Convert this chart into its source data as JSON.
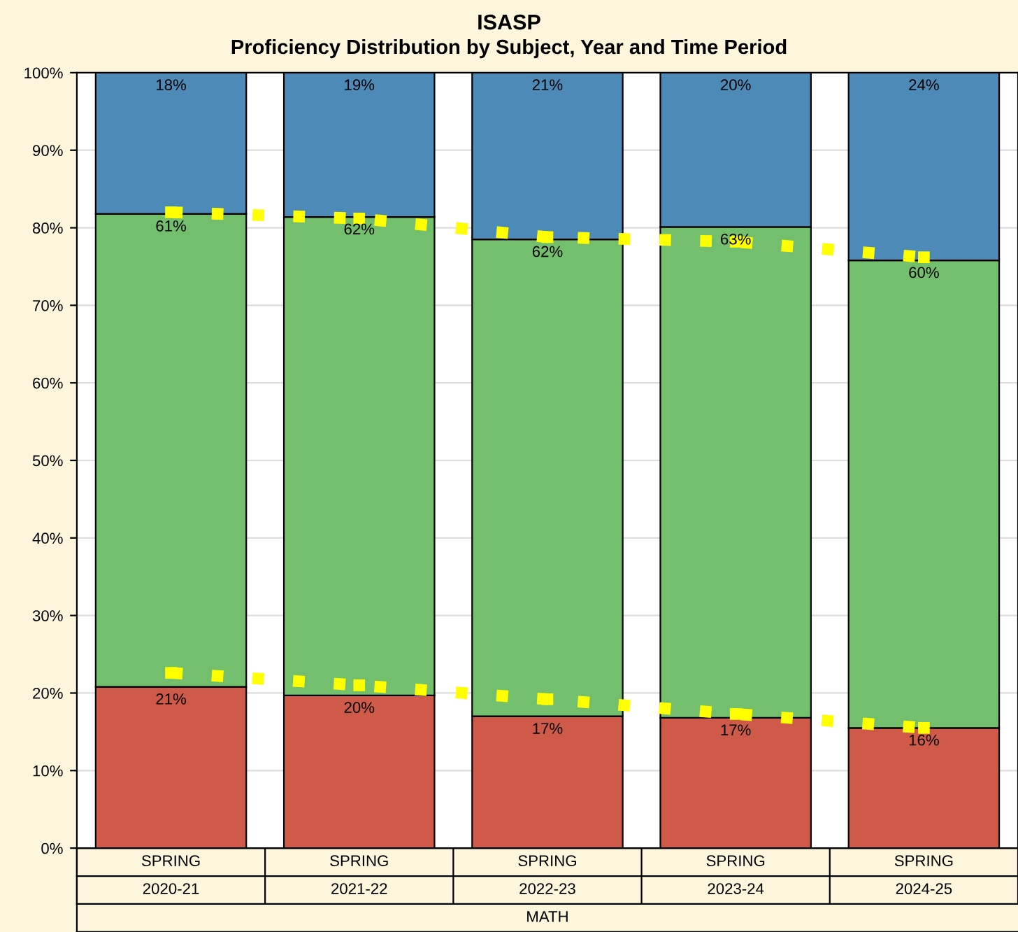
{
  "chart_data": {
    "type": "bar",
    "title": "ISASP",
    "subtitle": "Proficiency Distribution by Subject, Year and Time Period",
    "categories": [
      "SPRING\n2020-21",
      "SPRING\n2021-22",
      "SPRING\n2022-23",
      "SPRING\n2023-24",
      "SPRING\n2024-25"
    ],
    "stacked": true,
    "grid": "y",
    "series": [
      {
        "color": "#d05a4a",
        "values": [
          20.8,
          19.7,
          17.0,
          16.8,
          15.5
        ],
        "value_labels": [
          "21%",
          "20%",
          "17%",
          "17%",
          "16%"
        ]
      },
      {
        "color": "#74bf6e",
        "values": [
          61.0,
          61.7,
          61.5,
          63.3,
          60.3
        ],
        "value_labels": [
          "61%",
          "62%",
          "62%",
          "63%",
          "60%"
        ]
      },
      {
        "color": "#4d8ab8",
        "values": [
          18.2,
          18.6,
          21.5,
          19.9,
          24.2
        ],
        "value_labels": [
          "18%",
          "19%",
          "21%",
          "20%",
          "24%"
        ]
      },
      {
        "type": "line",
        "color": "#ffff00",
        "marker": "square",
        "line_style": "dotted",
        "values": [
          82,
          81.2,
          78.8,
          78.2,
          76.2
        ]
      },
      {
        "type": "line",
        "color": "#ffff00",
        "marker": "square",
        "line_style": "dotted",
        "values": [
          22.6,
          21,
          19.2,
          17.3,
          15.5
        ]
      }
    ],
    "ylim": [
      0,
      100
    ],
    "yticks": [
      {
        "value": 0,
        "label": "0%"
      },
      {
        "value": 10,
        "label": "10%"
      },
      {
        "value": 20,
        "label": "20%"
      },
      {
        "value": 30,
        "label": "30%"
      },
      {
        "value": 40,
        "label": "40%"
      },
      {
        "value": 50,
        "label": "50%"
      },
      {
        "value": 60,
        "label": "60%"
      },
      {
        "value": 70,
        "label": "70%"
      },
      {
        "value": 80,
        "label": "80%"
      },
      {
        "value": 90,
        "label": "90%"
      },
      {
        "value": 100,
        "label": "100%"
      }
    ],
    "annotations": [
      "MATH"
    ]
  }
}
